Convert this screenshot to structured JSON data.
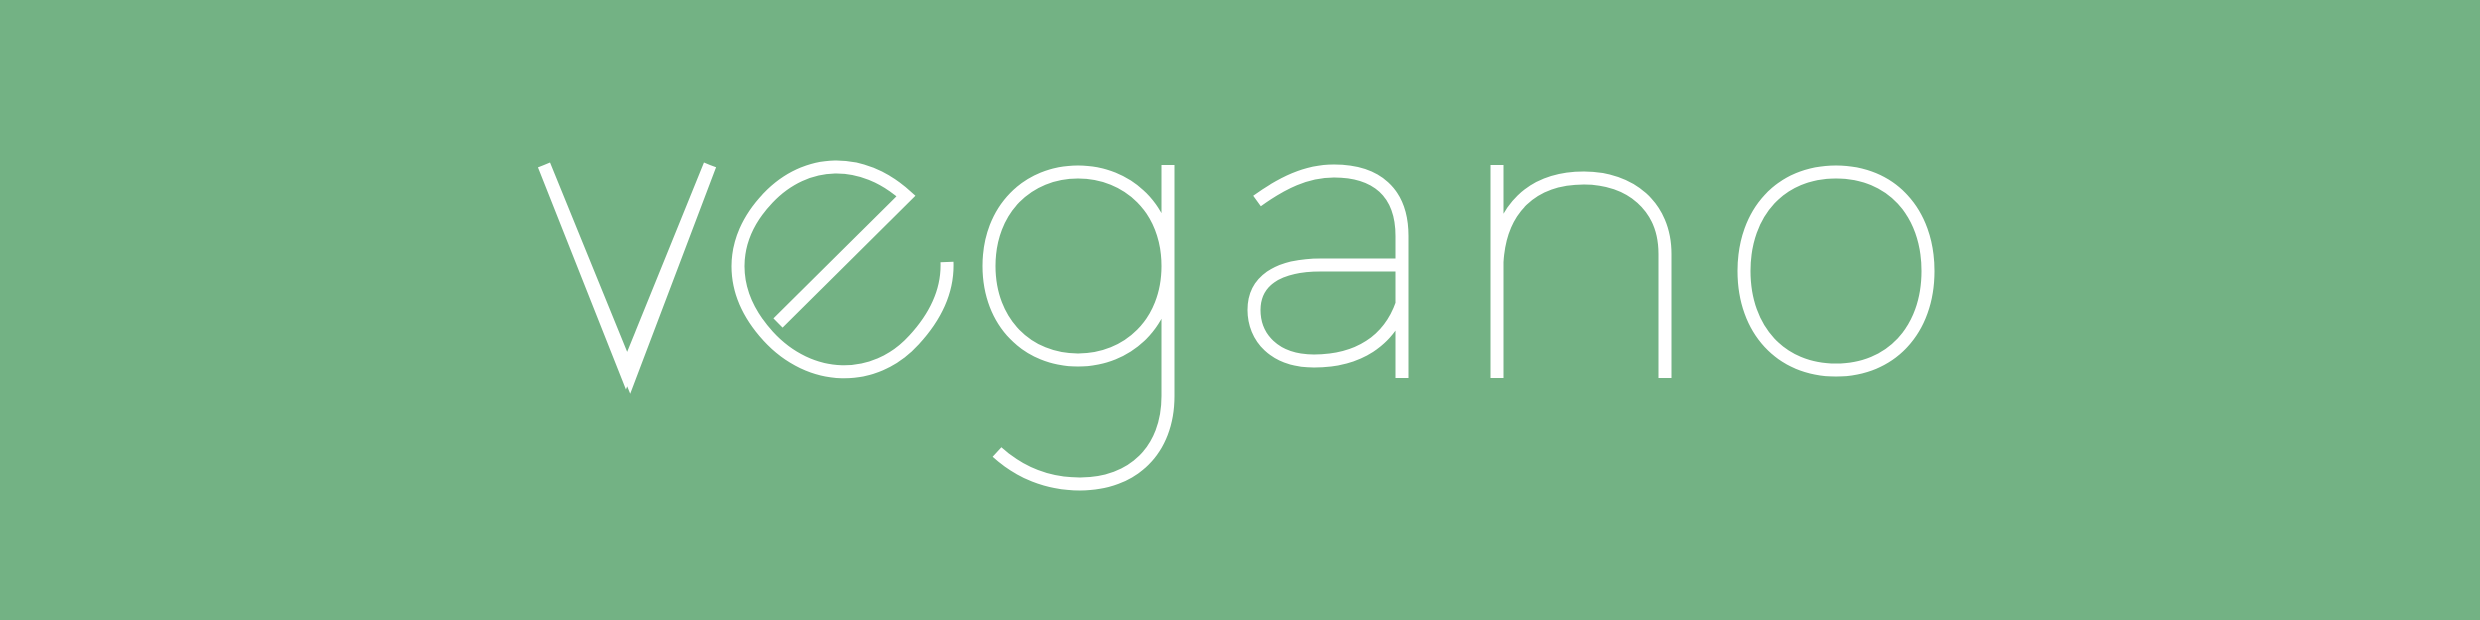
{
  "brand": {
    "wordmark": "vegano",
    "background_color": "#73b284",
    "text_color": "#ffffff"
  }
}
